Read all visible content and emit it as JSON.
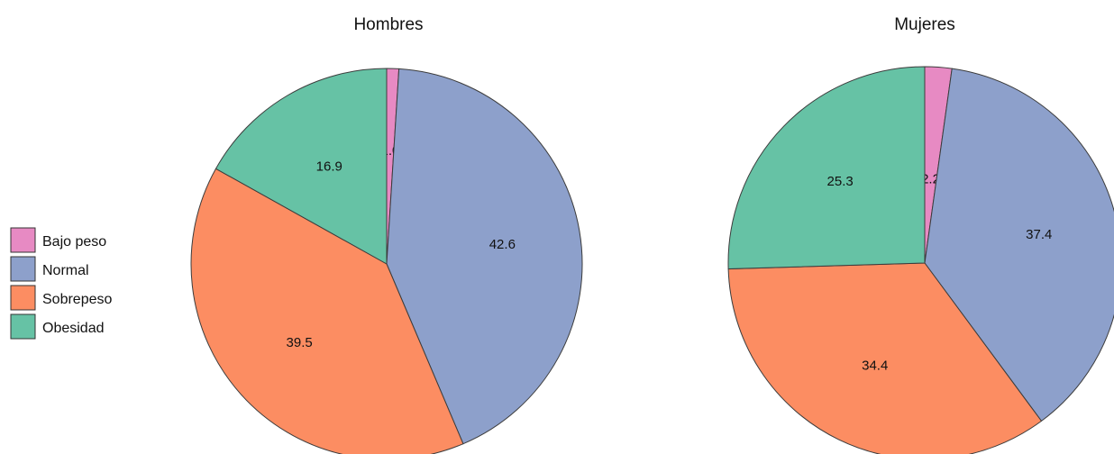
{
  "chart_data": {
    "type": "pie",
    "legend": {
      "placement": "left",
      "entries": [
        {
          "label": "Bajo peso",
          "color": "#e78ac3"
        },
        {
          "label": "Normal",
          "color": "#8da0cb"
        },
        {
          "label": "Sobrepeso",
          "color": "#fc8d62"
        },
        {
          "label": "Obesidad",
          "color": "#66c2a5"
        }
      ]
    },
    "charts": [
      {
        "title": "Hombres",
        "categories": [
          "Bajo peso",
          "Normal",
          "Sobrepeso",
          "Obesidad"
        ],
        "values": [
          1.0,
          42.6,
          39.5,
          16.9
        ],
        "labels": [
          "1.0",
          "42.6",
          "39.5",
          "16.9"
        ]
      },
      {
        "title": "Mujeres",
        "categories": [
          "Bajo peso",
          "Normal",
          "Sobrepeso",
          "Obesidad"
        ],
        "values": [
          2.2,
          37.4,
          34.4,
          25.3
        ],
        "labels": [
          "2.2",
          "37.4",
          "34.4",
          "25.3"
        ]
      }
    ]
  }
}
